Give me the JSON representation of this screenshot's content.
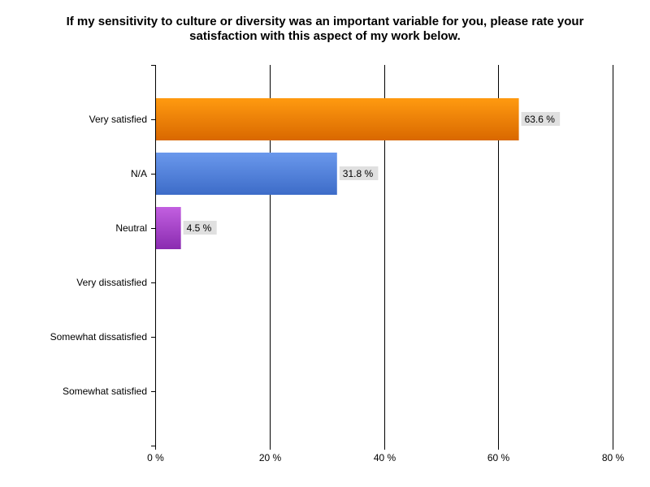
{
  "chart_data": {
    "type": "bar",
    "orientation": "horizontal",
    "title_lines": [
      "If my sensitivity to culture or diversity was an important variable for you, please rate your",
      "satisfaction with this aspect of my work below."
    ],
    "categories": [
      "Very satisfied",
      "N/A",
      "Neutral",
      "Very dissatisfied",
      "Somewhat dissatisfied",
      "Somewhat satisfied"
    ],
    "values": [
      63.6,
      31.8,
      4.5,
      0,
      0,
      0
    ],
    "value_labels": [
      "63.6 %",
      "31.8 %",
      "4.5 %",
      "",
      "",
      ""
    ],
    "bar_colors": [
      "#f08400",
      "#5080dc",
      "#a040c8",
      "",
      "",
      ""
    ],
    "xlim": [
      0,
      80
    ],
    "xticks": [
      0,
      20,
      40,
      60,
      80
    ],
    "xtick_labels": [
      "0 %",
      "20 %",
      "40 %",
      "60 %",
      "80 %"
    ],
    "xlabel": "",
    "ylabel": "",
    "grid": "vertical",
    "legend": "none"
  }
}
